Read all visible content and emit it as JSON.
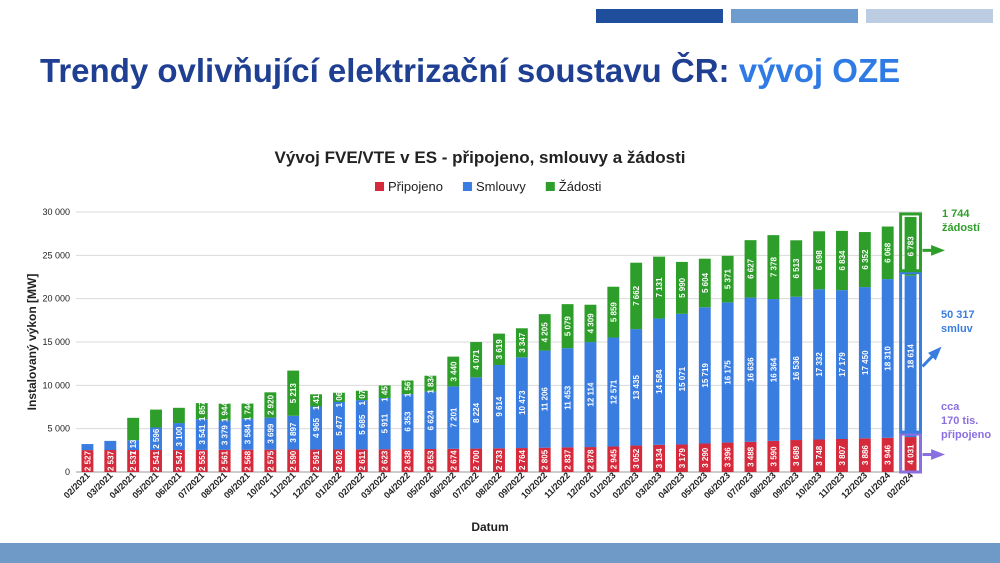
{
  "slide": {
    "title_main": "Trendy ovlivňující elektrizační soustavu ČR:",
    "title_accent": "vývoj OZE"
  },
  "chart_data": {
    "type": "bar",
    "stacked": true,
    "title": "Vývoj FVE/VTE v ES - připojeno, smlouvy a žádosti",
    "xlabel": "Datum",
    "ylabel": "Instalovaný výkon [MW]",
    "ylim": [
      0,
      30000
    ],
    "yticks": [
      0,
      5000,
      10000,
      15000,
      20000,
      25000,
      30000
    ],
    "ytick_labels": [
      "0",
      "5 000",
      "10 000",
      "15 000",
      "20 000",
      "25 000",
      "30 000"
    ],
    "grid": true,
    "legend_position": "top",
    "categories": [
      "02/2021",
      "03/2021",
      "04/2021",
      "05/2021",
      "06/2021",
      "07/2021",
      "08/2021",
      "09/2021",
      "10/2021",
      "11/2021",
      "12/2021",
      "01/2022",
      "02/2022",
      "03/2022",
      "04/2022",
      "05/2022",
      "06/2022",
      "07/2022",
      "08/2022",
      "09/2022",
      "10/2022",
      "11/2022",
      "12/2022",
      "01/2023",
      "02/2023",
      "03/2023",
      "04/2023",
      "05/2023",
      "06/2023",
      "07/2023",
      "08/2023",
      "09/2023",
      "10/2023",
      "11/2023",
      "12/2023",
      "01/2024",
      "02/2024"
    ],
    "series": [
      {
        "name": "Připojeno",
        "color": "#d42a3c",
        "values": [
          2527,
          2537,
          2537,
          2541,
          2547,
          2553,
          2561,
          2568,
          2575,
          2590,
          2591,
          2602,
          2611,
          2623,
          2638,
          2653,
          2674,
          2700,
          2733,
          2764,
          2805,
          2837,
          2878,
          2945,
          3052,
          3134,
          3179,
          3290,
          3396,
          3488,
          3590,
          3689,
          3748,
          3807,
          3886,
          3946,
          4031
        ],
        "labels": [
          "2 527",
          "2 537",
          "2 537",
          "2 541",
          "2 547",
          "2 553",
          "2 561",
          "2 568",
          "2 575",
          "2 590",
          "2 591",
          "2 602",
          "2 611",
          "2 623",
          "2 638",
          "2 653",
          "2 674",
          "2 700",
          "2 733",
          "2 764",
          "2 805",
          "2 837",
          "2 878",
          "2 945",
          "3 052",
          "3 134",
          "3 179",
          "3 290",
          "3 396",
          "3 488",
          "3 590",
          "3 689",
          "3 748",
          "3 807",
          "3 886",
          "3 946",
          "4 031"
        ]
      },
      {
        "name": "Smlouvy",
        "color": "#3a7de0",
        "values": [
          700,
          1051,
          1138,
          2596,
          3100,
          3541,
          3379,
          3584,
          3699,
          3897,
          4965,
          5477,
          5685,
          5911,
          6353,
          6624,
          7201,
          8224,
          9614,
          10473,
          11206,
          11453,
          12114,
          12571,
          13435,
          14584,
          15071,
          15719,
          16175,
          16636,
          16364,
          16536,
          17332,
          17179,
          17450,
          18310,
          18614
        ],
        "labels": [
          "",
          "",
          "1 138",
          "2 596",
          "3 100",
          "3 541",
          "3 379",
          "3 584",
          "3 699",
          "3 897",
          "4 965",
          "5 477",
          "5 685",
          "5 911",
          "6 353",
          "6 624",
          "7 201",
          "8 224",
          "9 614",
          "10 473",
          "11 206",
          "11 453",
          "12 114",
          "12 571",
          "13 435",
          "14 584",
          "15 071",
          "15 719",
          "16 175",
          "16 636",
          "16 364",
          "16 536",
          "17 332",
          "17 179",
          "17 450",
          "18 310",
          "18 614"
        ]
      },
      {
        "name": "Žádosti",
        "color": "#2e9e2a",
        "values": [
          0,
          0,
          2576,
          2064,
          1760,
          1857,
          1944,
          1744,
          2920,
          5213,
          1411,
          1069,
          1079,
          1457,
          1567,
          1834,
          3440,
          4071,
          3619,
          3347,
          4205,
          5079,
          4309,
          5859,
          7662,
          7131,
          5990,
          5604,
          5371,
          6627,
          7378,
          6513,
          6698,
          6834,
          6352,
          6068,
          6783
        ],
        "labels": [
          "",
          "",
          "",
          "",
          "",
          "1 857",
          "1 944",
          "1 744",
          "2 920",
          "5 213",
          "1 411",
          "1 069",
          "1 079",
          "1 457",
          "1 567",
          "1 834",
          "3 440",
          "4 071",
          "3 619",
          "3 347",
          "4 205",
          "5 079",
          "4 309",
          "5 859",
          "7 662",
          "7 131",
          "5 990",
          "5 604",
          "5 371",
          "6 627",
          "7 378",
          "6 513",
          "6 698",
          "6 834",
          "6 352",
          "6 068",
          "6 783"
        ]
      }
    ],
    "annotations": [
      {
        "text_line1": "1 744",
        "text_line2": "žádostí",
        "color": "#2e9e2a"
      },
      {
        "text_line1": "50 317",
        "text_line2": "smluv",
        "color": "#3a7de0"
      },
      {
        "text_line1": "cca",
        "text_line2": "170 tis.",
        "text_line3": "připojeno",
        "color": "#8a6fe0"
      }
    ]
  }
}
